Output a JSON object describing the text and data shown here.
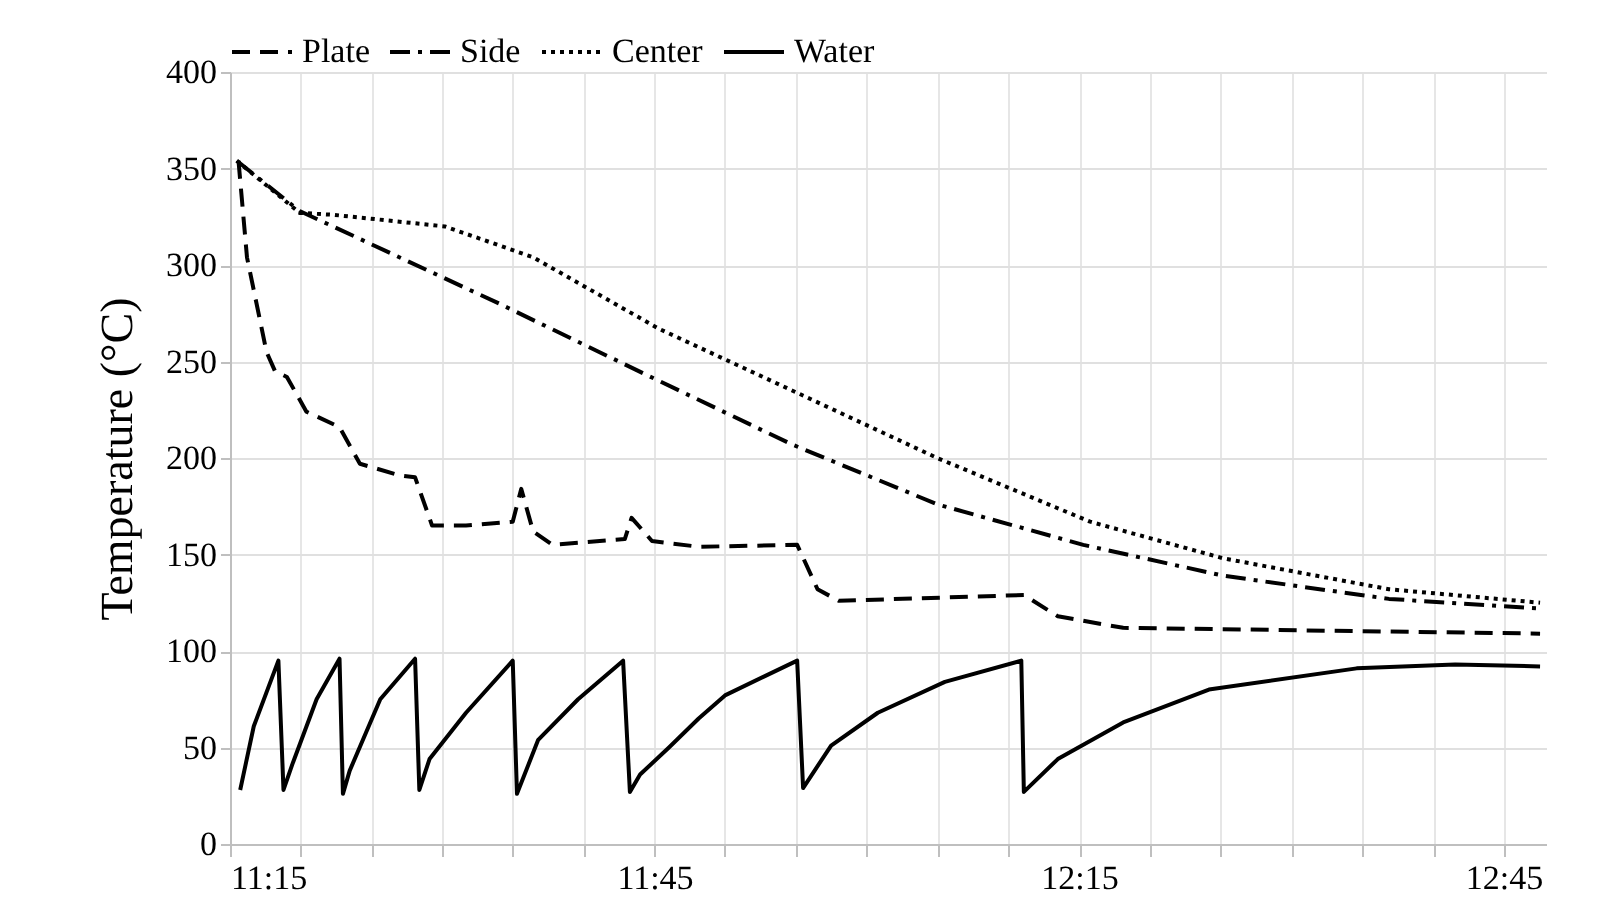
{
  "chart_data": {
    "type": "line",
    "ylabel": "Temperature (°C)",
    "legend": "top",
    "grid": true,
    "xlim": [
      11.25,
      12.8
    ],
    "ylim": [
      0,
      400
    ],
    "yticks": [
      0,
      50,
      100,
      150,
      200,
      250,
      300,
      350,
      400
    ],
    "xticks": [
      {
        "value": 11.25,
        "label": "11:15"
      },
      {
        "value": 11.333,
        "label": null
      },
      {
        "value": 11.417,
        "label": null
      },
      {
        "value": 11.5,
        "label": null
      },
      {
        "value": 11.583,
        "label": null
      },
      {
        "value": 11.667,
        "label": null
      },
      {
        "value": 11.75,
        "label": "11:45"
      },
      {
        "value": 11.833,
        "label": null
      },
      {
        "value": 11.917,
        "label": null
      },
      {
        "value": 12,
        "label": null
      },
      {
        "value": 12.083,
        "label": null
      },
      {
        "value": 12.167,
        "label": null
      },
      {
        "value": 12.25,
        "label": "12:15"
      },
      {
        "value": 12.333,
        "label": null
      },
      {
        "value": 12.417,
        "label": null
      },
      {
        "value": 12.5,
        "label": null
      },
      {
        "value": 12.583,
        "label": null
      },
      {
        "value": 12.667,
        "label": null
      },
      {
        "value": 12.75,
        "label": "12:45"
      }
    ],
    "series": [
      {
        "name": "Plate",
        "color": "#000000",
        "line_style": "dashed",
        "x": [
          11.26,
          11.27,
          11.293,
          11.303,
          11.317,
          11.34,
          11.379,
          11.403,
          11.45,
          11.468,
          11.488,
          11.528,
          11.583,
          11.593,
          11.607,
          11.63,
          11.715,
          11.723,
          11.747,
          11.802,
          11.918,
          11.942,
          11.967,
          12.185,
          12.225,
          12.302,
          12.793
        ],
        "values": [
          354,
          304,
          255,
          245,
          242,
          224,
          216,
          197,
          191,
          190,
          165,
          165,
          167,
          184,
          162,
          155,
          158,
          169,
          157,
          154,
          155,
          132,
          126,
          129,
          118,
          112,
          109
        ]
      },
      {
        "name": "Side",
        "color": "#000000",
        "line_style": "dashdot",
        "x": [
          11.258,
          11.332,
          11.567,
          11.755,
          11.912,
          12.083,
          12.255,
          12.42,
          12.615,
          12.793
        ],
        "values": [
          354,
          328,
          280,
          240,
          207,
          176,
          155,
          139,
          127,
          122
        ]
      },
      {
        "name": "Center",
        "color": "#000000",
        "line_style": "dotted",
        "x": [
          11.258,
          11.332,
          11.372,
          11.503,
          11.607,
          11.755,
          11.912,
          12.083,
          12.263,
          12.42,
          12.615,
          12.793
        ],
        "values": [
          354,
          327,
          326,
          320,
          304,
          267,
          235,
          200,
          167,
          148,
          132,
          125
        ]
      },
      {
        "name": "Water",
        "color": "#000000",
        "line_style": "solid",
        "x": [
          11.262,
          11.278,
          11.307,
          11.313,
          11.324,
          11.352,
          11.379,
          11.383,
          11.391,
          11.427,
          11.468,
          11.473,
          11.485,
          11.528,
          11.583,
          11.588,
          11.613,
          11.66,
          11.713,
          11.721,
          11.733,
          11.767,
          11.802,
          11.833,
          11.88,
          11.918,
          11.925,
          11.958,
          12.013,
          12.092,
          12.182,
          12.185,
          12.225,
          12.302,
          12.403,
          12.577,
          12.693,
          12.793
        ],
        "values": [
          28,
          61,
          95,
          28,
          42,
          75,
          96,
          26,
          38,
          75,
          96,
          28,
          44,
          68,
          95,
          26,
          54,
          75,
          95,
          27,
          36,
          50,
          65,
          77,
          87,
          95,
          29,
          51,
          68,
          84,
          95,
          27,
          44,
          63,
          80,
          91,
          93,
          92
        ]
      }
    ]
  }
}
